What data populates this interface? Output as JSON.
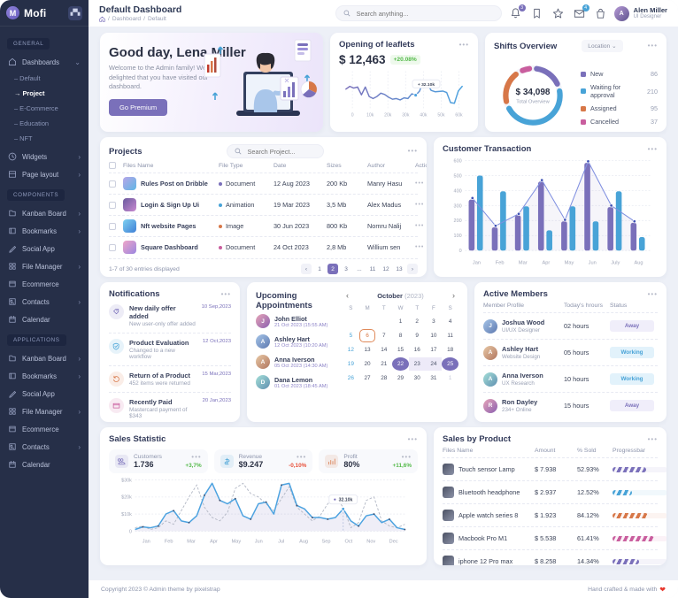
{
  "app": {
    "name": "Mofi"
  },
  "ui": {
    "dots": "•••",
    "sep": "/",
    "caret": "⌄",
    "chevron": "›",
    "arrow": "→"
  },
  "header": {
    "title": "Default Dashboard",
    "breadcrumb": [
      "Dashboard",
      "Default"
    ],
    "search_placeholder": "Search anything...",
    "notification_badge": "3",
    "message_badge": "4",
    "user": {
      "name": "Alen Miller",
      "role": "UI Designer",
      "initials": "A"
    }
  },
  "sidebar": {
    "sections": [
      {
        "label": "GENERAL",
        "items": [
          {
            "label": "Dashboards",
            "icon": "home-icon",
            "expanded": true,
            "children": [
              {
                "label": "Default"
              },
              {
                "label": "Project",
                "active": true
              },
              {
                "label": "E-Commerce"
              },
              {
                "label": "Education"
              },
              {
                "label": "NFT"
              }
            ]
          },
          {
            "label": "Widgets",
            "icon": "widgets-icon",
            "chevron": true
          },
          {
            "label": "Page layout",
            "icon": "layout-icon",
            "chevron": true
          }
        ]
      },
      {
        "label": "COMPONENTS",
        "items": [
          {
            "label": "Kanban Board",
            "icon": "kanban-icon",
            "chevron": true
          },
          {
            "label": "Bookmarks",
            "icon": "bookmark-icon",
            "chevron": true
          },
          {
            "label": "Social App",
            "icon": "social-icon"
          },
          {
            "label": "File Manager",
            "icon": "file-manager-icon",
            "chevron": true
          },
          {
            "label": "Ecommerce",
            "icon": "ecommerce-icon"
          },
          {
            "label": "Contacts",
            "icon": "contacts-icon",
            "chevron": true
          },
          {
            "label": "Calendar",
            "icon": "calendar-icon"
          }
        ]
      },
      {
        "label": "APPLICATIONS",
        "items": [
          {
            "label": "Kanban Board",
            "icon": "kanban-icon",
            "chevron": true
          },
          {
            "label": "Bookmarks",
            "icon": "bookmark-icon",
            "chevron": true
          },
          {
            "label": "Social App",
            "icon": "social-icon"
          },
          {
            "label": "File Manager",
            "icon": "file-manager-icon",
            "chevron": true
          },
          {
            "label": "Ecommerce",
            "icon": "ecommerce-icon"
          },
          {
            "label": "Contacts",
            "icon": "contacts-icon",
            "chevron": true
          },
          {
            "label": "Calendar",
            "icon": "calendar-icon"
          }
        ]
      }
    ]
  },
  "greeting": {
    "title": "Good day, Lena Miller",
    "message": "Welcome to the Admin family! We are delighted that you have visited our dashboard.",
    "button": "Go Premium"
  },
  "leaflets": {
    "title": "Opening of leaflets",
    "value": "$ 12,463",
    "change": "+20.08%",
    "tooltip": "+ 32.10k"
  },
  "shifts": {
    "title": "Shifts Overview",
    "filter": "Location",
    "total_value": "$ 34,098",
    "total_label": "Total Overview",
    "legend": [
      {
        "label": "New",
        "value": "86",
        "color": "#7A70BA"
      },
      {
        "label": "Waiting for approval",
        "value": "210",
        "color": "#48A3D7"
      },
      {
        "label": "Assigned",
        "value": "95",
        "color": "#D77748"
      },
      {
        "label": "Cancelled",
        "value": "37",
        "color": "#C95E9E"
      }
    ]
  },
  "projects": {
    "title": "Projects",
    "search_placeholder": "Search Project...",
    "columns": [
      "Files Name",
      "File Type",
      "Date",
      "Sizes",
      "Author",
      "Actions"
    ],
    "rows": [
      {
        "name": "Rules Post on Dribble",
        "type": "Document",
        "type_color": "#7A70BA",
        "date": "12 Aug 2023",
        "size": "200 Kb",
        "author": "Manry Hasu",
        "thumb": "linear-gradient(135deg,#b7a6e8,#5fb7e5)"
      },
      {
        "name": "Login & Sign Up Ui",
        "type": "Animation",
        "type_color": "#48A3D7",
        "date": "19 Mar 2023",
        "size": "3,5 Mb",
        "author": "Alex Madus",
        "thumb": "linear-gradient(135deg,#6a5a9e,#c98ad1)"
      },
      {
        "name": "Nft website Pages",
        "type": "Image",
        "type_color": "#D77748",
        "date": "30 Jun 2023",
        "size": "800 Kb",
        "author": "Nomru Nalij",
        "thumb": "linear-gradient(135deg,#7fd1f0,#3f7fd6)"
      },
      {
        "name": "Square Dashboard",
        "type": "Document",
        "type_color": "#C95E9E",
        "date": "24 Oct 2023",
        "size": "2,8 Mb",
        "author": "Willium sen",
        "thumb": "linear-gradient(135deg,#f0a6c8,#9a86e0)"
      }
    ],
    "footer_text": "1-7 of 30 entries displayed",
    "pagination": [
      "‹",
      "1",
      "2",
      "3",
      "...",
      "11",
      "12",
      "13",
      "›"
    ],
    "active_page": "2"
  },
  "customer_transaction": {
    "title": "Customer Transaction"
  },
  "notifications": {
    "title": "Notifications",
    "items": [
      {
        "title": "New daily offer added",
        "subtitle": "New user-only offer added",
        "date": "10 Sep,2023",
        "color": "#7A70BA",
        "icon": "tag-icon"
      },
      {
        "title": "Product Evaluation",
        "subtitle": "Changed to a new workflow",
        "date": "12 Oct,2023",
        "color": "#48A3D7",
        "icon": "shield-icon"
      },
      {
        "title": "Return of a Product",
        "subtitle": "452 items were returned",
        "date": "15 Mar,2023",
        "color": "#D77748",
        "icon": "return-icon"
      },
      {
        "title": "Recently Paid",
        "subtitle": "Mastercard payment of $343",
        "date": "20 Jan,2023",
        "color": "#C95E9E",
        "icon": "card-icon"
      }
    ]
  },
  "appointments": {
    "title": "Upcoming Appointments",
    "people": [
      {
        "name": "John Elliot",
        "time": "21 Oct 2023 (15:55 AM)"
      },
      {
        "name": "Ashley Hart",
        "time": "12 Oct 2023 (10:20 AM)"
      },
      {
        "name": "Anna Iverson",
        "time": "05 Oct 2023 (14:30 AM)"
      },
      {
        "name": "Dana Lemon",
        "time": "01 Oct 2023 (18:45 AM)"
      }
    ],
    "calendar": {
      "month": "October",
      "year": "(2023)",
      "prev": "‹",
      "next": "›",
      "weekdays": [
        "S",
        "M",
        "T",
        "W",
        "T",
        "F",
        "S"
      ],
      "cells": [
        [
          "",
          ""
        ],
        [
          "",
          ""
        ],
        [
          "",
          ""
        ],
        [
          "1",
          ""
        ],
        [
          "2",
          ""
        ],
        [
          "3",
          ""
        ],
        [
          "4",
          ""
        ],
        [
          "5",
          "sun"
        ],
        [
          "6",
          "today"
        ],
        [
          "7",
          ""
        ],
        [
          "8",
          ""
        ],
        [
          "9",
          ""
        ],
        [
          "10",
          ""
        ],
        [
          "11",
          ""
        ],
        [
          "12",
          "sun"
        ],
        [
          "13",
          ""
        ],
        [
          "14",
          ""
        ],
        [
          "15",
          ""
        ],
        [
          "16",
          ""
        ],
        [
          "17",
          ""
        ],
        [
          "18",
          ""
        ],
        [
          "19",
          "sun"
        ],
        [
          "20",
          ""
        ],
        [
          "21",
          ""
        ],
        [
          "22",
          "sel"
        ],
        [
          "23",
          "range"
        ],
        [
          "24",
          "range"
        ],
        [
          "25",
          "sel"
        ],
        [
          "26",
          "sun"
        ],
        [
          "27",
          ""
        ],
        [
          "28",
          ""
        ],
        [
          "29",
          ""
        ],
        [
          "30",
          ""
        ],
        [
          "31",
          ""
        ],
        [
          "1",
          "mut"
        ]
      ]
    }
  },
  "members": {
    "title": "Active Members",
    "columns": [
      "Member Profile",
      "Today's hrours",
      "Status"
    ],
    "rows": [
      {
        "name": "Joshua Wood",
        "role": "UI/UX Designer",
        "hours": "02 hours",
        "status": "Away"
      },
      {
        "name": "Ashley Hart",
        "role": "Website Design",
        "hours": "05 hours",
        "status": "Working"
      },
      {
        "name": "Anna Iverson",
        "role": "UX Research",
        "hours": "10 hours",
        "status": "Working"
      },
      {
        "name": "Ron Dayley",
        "role": "234+ Online",
        "hours": "15 hours",
        "status": "Away"
      }
    ]
  },
  "sales_statistic": {
    "title": "Sales Statistic",
    "stats": [
      {
        "label": "Customers",
        "value": "1.736",
        "change": "+3,7%",
        "dir": "up",
        "color": "#7A70BA",
        "icon": "customers-icon"
      },
      {
        "label": "Revenue",
        "value": "$9.247",
        "change": "-0,10%",
        "dir": "down",
        "color": "#48A3D7",
        "icon": "revenue-icon"
      },
      {
        "label": "Profit",
        "value": "80%",
        "change": "+11,6%",
        "dir": "up",
        "color": "#D77748",
        "icon": "profit-icon"
      }
    ],
    "tooltip": "32.10k"
  },
  "sales_by_product": {
    "title": "Sales by Product",
    "columns": [
      "Files Name",
      "Amount",
      "% Sold",
      "Progressbar"
    ],
    "rows": [
      {
        "name": "Touch sensor Lamp",
        "amount": "$ 7.938",
        "sold": "52.93%",
        "color": "#7A70BA",
        "bar": 62
      },
      {
        "name": "Bluetooth headphone",
        "amount": "$ 2.937",
        "sold": "12.52%",
        "color": "#48A3D7",
        "bar": 35
      },
      {
        "name": "Apple watch series 8",
        "amount": "$ 1.923",
        "sold": "84.12%",
        "color": "#D77748",
        "bar": 64
      },
      {
        "name": "Macbook Pro M1",
        "amount": "$ 5.538",
        "sold": "61.41%",
        "color": "#C95E9E",
        "bar": 76
      },
      {
        "name": "iphone 12 Pro max",
        "amount": "$ 8.258",
        "sold": "14.34%",
        "color": "#7A70BA",
        "bar": 48
      }
    ]
  },
  "footer": {
    "left": "Copyright 2023 © Admin theme by pixelstrap",
    "right": "Hand crafted & made with",
    "heart": "❤"
  },
  "chart_data": [
    {
      "type": "line",
      "title": "Opening of leaflets",
      "x_ticks": [
        "0",
        "10k",
        "20k",
        "30k",
        "40k",
        "50k",
        "60k"
      ],
      "values": [
        52,
        60,
        55,
        58,
        35,
        58,
        30,
        24,
        30,
        40,
        36,
        28,
        22,
        24,
        20,
        26,
        24,
        38,
        34,
        46,
        78,
        68,
        48,
        44,
        45,
        46,
        42,
        12,
        10,
        46,
        60
      ],
      "tooltip_index": 18,
      "tooltip": "+ 32.10k",
      "ylim": [
        0,
        100
      ]
    },
    {
      "type": "pie",
      "title": "Shifts Overview",
      "labels": [
        "New",
        "Waiting for approval",
        "Assigned",
        "Cancelled"
      ],
      "values": [
        86,
        210,
        95,
        37
      ],
      "center_value": "$ 34,098",
      "center_label": "Total Overview"
    },
    {
      "type": "bar",
      "title": "Customer Transaction",
      "categories": [
        "Jan",
        "Feb",
        "Mar",
        "Apr",
        "May",
        "Jun",
        "July",
        "Aug"
      ],
      "series": [
        {
          "name": "primary",
          "color": "#7A70BA",
          "values": [
            340,
            155,
            235,
            460,
            195,
            585,
            290,
            185
          ]
        },
        {
          "name": "secondary",
          "color": "#48A3D7",
          "values": [
            500,
            395,
            295,
            135,
            295,
            195,
            395,
            90
          ]
        }
      ],
      "line": [
        350,
        165,
        245,
        470,
        205,
        595,
        300,
        195
      ],
      "ylim": [
        0,
        600
      ],
      "y_ticks": [
        0,
        100,
        200,
        300,
        400,
        500,
        600
      ]
    },
    {
      "type": "area",
      "title": "Sales Statistic",
      "x_ticks": [
        "Jan",
        "Feb",
        "Mar",
        "Apr",
        "May",
        "Jun",
        "Jul",
        "Aug",
        "Sep",
        "Oct",
        "Nov",
        "Dec"
      ],
      "ylim": [
        0,
        30
      ],
      "y_ticks": [
        "0",
        "$10k",
        "$20k",
        "$30k"
      ],
      "series": [
        {
          "name": "sales",
          "values": [
            1,
            2.5,
            2,
            3,
            10,
            12,
            6,
            5,
            9,
            21,
            28,
            18,
            16,
            19,
            9,
            7,
            16,
            17,
            10,
            27,
            28,
            15,
            13,
            8,
            8,
            7,
            8,
            13,
            6,
            3,
            9,
            10,
            5,
            7,
            2,
            1
          ]
        },
        {
          "name": "compare",
          "values": [
            2,
            3,
            1,
            2,
            6,
            4,
            12,
            20,
            27,
            14,
            8,
            6,
            11,
            25,
            28,
            22,
            20,
            16,
            12,
            19,
            26,
            14,
            10,
            6,
            9,
            16,
            20,
            14,
            2,
            5,
            18,
            20,
            6,
            3,
            2,
            4
          ]
        }
      ],
      "tooltip_index": 27,
      "tooltip": "32.10k"
    }
  ]
}
